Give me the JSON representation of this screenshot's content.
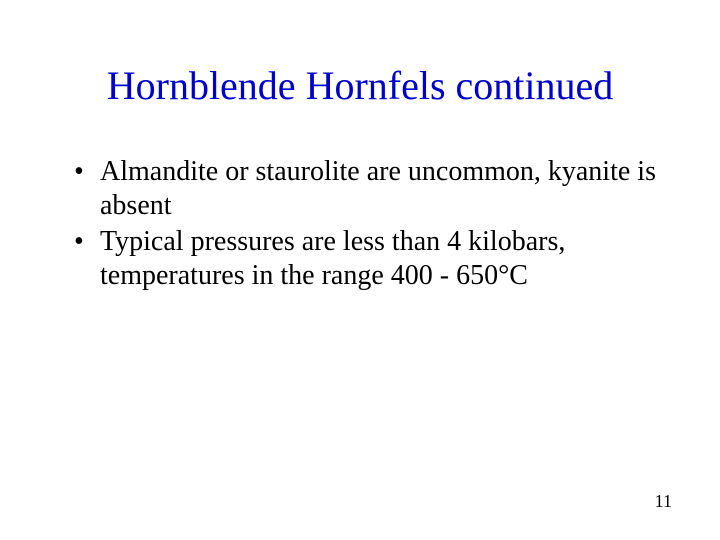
{
  "slide": {
    "title": "Hornblende Hornfels continued",
    "title_color": "#0000cc",
    "title_fontsize": 40,
    "body_fontsize": 28,
    "text_color": "#000000",
    "background_color": "#ffffff",
    "bullets": [
      "Almandite or staurolite are uncommon, kyanite is absent",
      "Typical pressures are less than 4 kilobars, temperatures in the range 400 - 650°C"
    ],
    "page_number": "11"
  }
}
